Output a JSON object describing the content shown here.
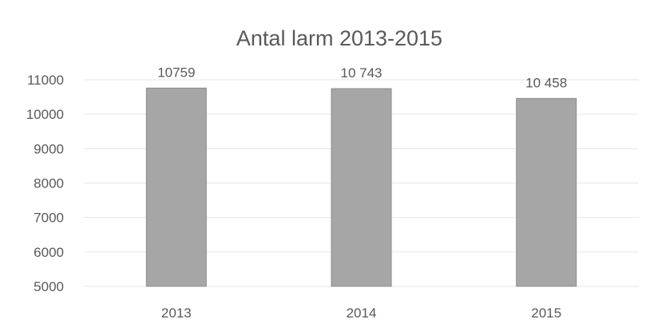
{
  "chart_data": {
    "type": "bar",
    "title": "Antal larm 2013-2015",
    "xlabel": "",
    "ylabel": "",
    "categories": [
      "2013",
      "2014",
      "2015"
    ],
    "values": [
      10759,
      10743,
      10458
    ],
    "data_labels": [
      "10759",
      "10 743",
      "10 458"
    ],
    "ylim": [
      5000,
      11000
    ],
    "yticks": [
      5000,
      6000,
      7000,
      8000,
      9000,
      10000,
      11000
    ],
    "grid": true,
    "legend": "none",
    "colors": {
      "bar": "#a6a6a6",
      "bar_edge": "#8c8c8c",
      "grid": "#e6e6e6",
      "text": "#595959",
      "title": "#595959"
    }
  }
}
